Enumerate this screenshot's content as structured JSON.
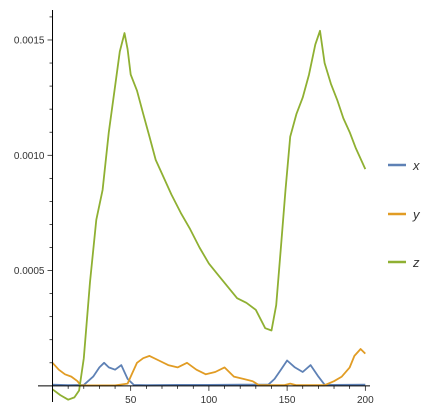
{
  "chart_data": {
    "type": "line",
    "title": "",
    "xlabel": "",
    "ylabel": "",
    "xlim": [
      -8,
      203
    ],
    "ylim": [
      -7e-05,
      0.00163
    ],
    "grid": false,
    "legend_position": "right",
    "x_ticks": [
      {
        "value": 50,
        "label": "50"
      },
      {
        "value": 100,
        "label": "100"
      },
      {
        "value": 150,
        "label": "150"
      },
      {
        "value": 200,
        "label": "200"
      }
    ],
    "y_ticks": [
      {
        "value": 0.0005,
        "label": "0.0005"
      },
      {
        "value": 0.001,
        "label": "0.0010"
      },
      {
        "value": 0.0015,
        "label": "0.0015"
      }
    ],
    "series": [
      {
        "name": "x",
        "color": "#5e81b5",
        "points": [
          [
            0,
            5e-06
          ],
          [
            10,
            3e-06
          ],
          [
            20,
            4e-06
          ],
          [
            26,
            4e-05
          ],
          [
            30,
            8e-05
          ],
          [
            33,
            0.0001
          ],
          [
            36,
            8e-05
          ],
          [
            40,
            7e-05
          ],
          [
            44,
            9e-05
          ],
          [
            48,
            3e-05
          ],
          [
            52,
            4e-06
          ],
          [
            60,
            3e-06
          ],
          [
            80,
            4e-06
          ],
          [
            100,
            4e-06
          ],
          [
            120,
            5e-06
          ],
          [
            138,
            5e-06
          ],
          [
            142,
            3e-05
          ],
          [
            146,
            7e-05
          ],
          [
            150,
            0.00011
          ],
          [
            155,
            8e-05
          ],
          [
            160,
            6e-05
          ],
          [
            165,
            9e-05
          ],
          [
            170,
            4e-05
          ],
          [
            174,
            5e-06
          ],
          [
            180,
            4e-06
          ],
          [
            200,
            5e-06
          ]
        ]
      },
      {
        "name": "y",
        "color": "#e19c24",
        "points": [
          [
            0,
            0.0001
          ],
          [
            4,
            7e-05
          ],
          [
            8,
            5e-05
          ],
          [
            12,
            4e-05
          ],
          [
            16,
            2e-05
          ],
          [
            18,
            2e-06
          ],
          [
            22,
            2e-06
          ],
          [
            30,
            2e-06
          ],
          [
            40,
            2e-06
          ],
          [
            48,
            1e-05
          ],
          [
            50,
            4e-05
          ],
          [
            54,
            0.0001
          ],
          [
            58,
            0.00012
          ],
          [
            62,
            0.00013
          ],
          [
            68,
            0.00011
          ],
          [
            74,
            9e-05
          ],
          [
            80,
            8e-05
          ],
          [
            86,
            0.0001
          ],
          [
            92,
            7e-05
          ],
          [
            98,
            5e-05
          ],
          [
            104,
            6e-05
          ],
          [
            110,
            8e-05
          ],
          [
            116,
            4e-05
          ],
          [
            122,
            3e-05
          ],
          [
            128,
            2e-05
          ],
          [
            132,
            3e-06
          ],
          [
            140,
            3e-06
          ],
          [
            148,
            3e-06
          ],
          [
            152,
            1e-05
          ],
          [
            156,
            3e-06
          ],
          [
            165,
            3e-06
          ],
          [
            174,
            3e-06
          ],
          [
            180,
            2e-05
          ],
          [
            185,
            4e-05
          ],
          [
            190,
            8e-05
          ],
          [
            193,
            0.00013
          ],
          [
            197,
            0.00016
          ],
          [
            200,
            0.00014
          ]
        ]
      },
      {
        "name": "z",
        "color": "#8fb032",
        "points": [
          [
            0,
            -1.5e-05
          ],
          [
            5,
            -4e-05
          ],
          [
            10,
            -6e-05
          ],
          [
            14,
            -5e-05
          ],
          [
            17,
            -2e-05
          ],
          [
            20,
            0.00012
          ],
          [
            24,
            0.00045
          ],
          [
            28,
            0.00072
          ],
          [
            32,
            0.00085
          ],
          [
            36,
            0.0011
          ],
          [
            40,
            0.0013
          ],
          [
            43,
            0.00145
          ],
          [
            46,
            0.00153
          ],
          [
            48,
            0.00146
          ],
          [
            50,
            0.00135
          ],
          [
            54,
            0.00128
          ],
          [
            58,
            0.00118
          ],
          [
            62,
            0.00108
          ],
          [
            66,
            0.00098
          ],
          [
            70,
            0.00092
          ],
          [
            76,
            0.00083
          ],
          [
            82,
            0.00075
          ],
          [
            88,
            0.00068
          ],
          [
            94,
            0.0006
          ],
          [
            100,
            0.00053
          ],
          [
            106,
            0.00048
          ],
          [
            112,
            0.00043
          ],
          [
            118,
            0.00038
          ],
          [
            124,
            0.00036
          ],
          [
            130,
            0.00033
          ],
          [
            136,
            0.00025
          ],
          [
            140,
            0.00024
          ],
          [
            143,
            0.00035
          ],
          [
            146,
            0.0006
          ],
          [
            149,
            0.00085
          ],
          [
            152,
            0.00108
          ],
          [
            156,
            0.00118
          ],
          [
            160,
            0.00125
          ],
          [
            164,
            0.00135
          ],
          [
            168,
            0.00148
          ],
          [
            171,
            0.00154
          ],
          [
            174,
            0.0014
          ],
          [
            178,
            0.00131
          ],
          [
            182,
            0.00124
          ],
          [
            186,
            0.00116
          ],
          [
            190,
            0.0011
          ],
          [
            194,
            0.00103
          ],
          [
            198,
            0.00097
          ],
          [
            200,
            0.00094
          ]
        ]
      }
    ]
  }
}
